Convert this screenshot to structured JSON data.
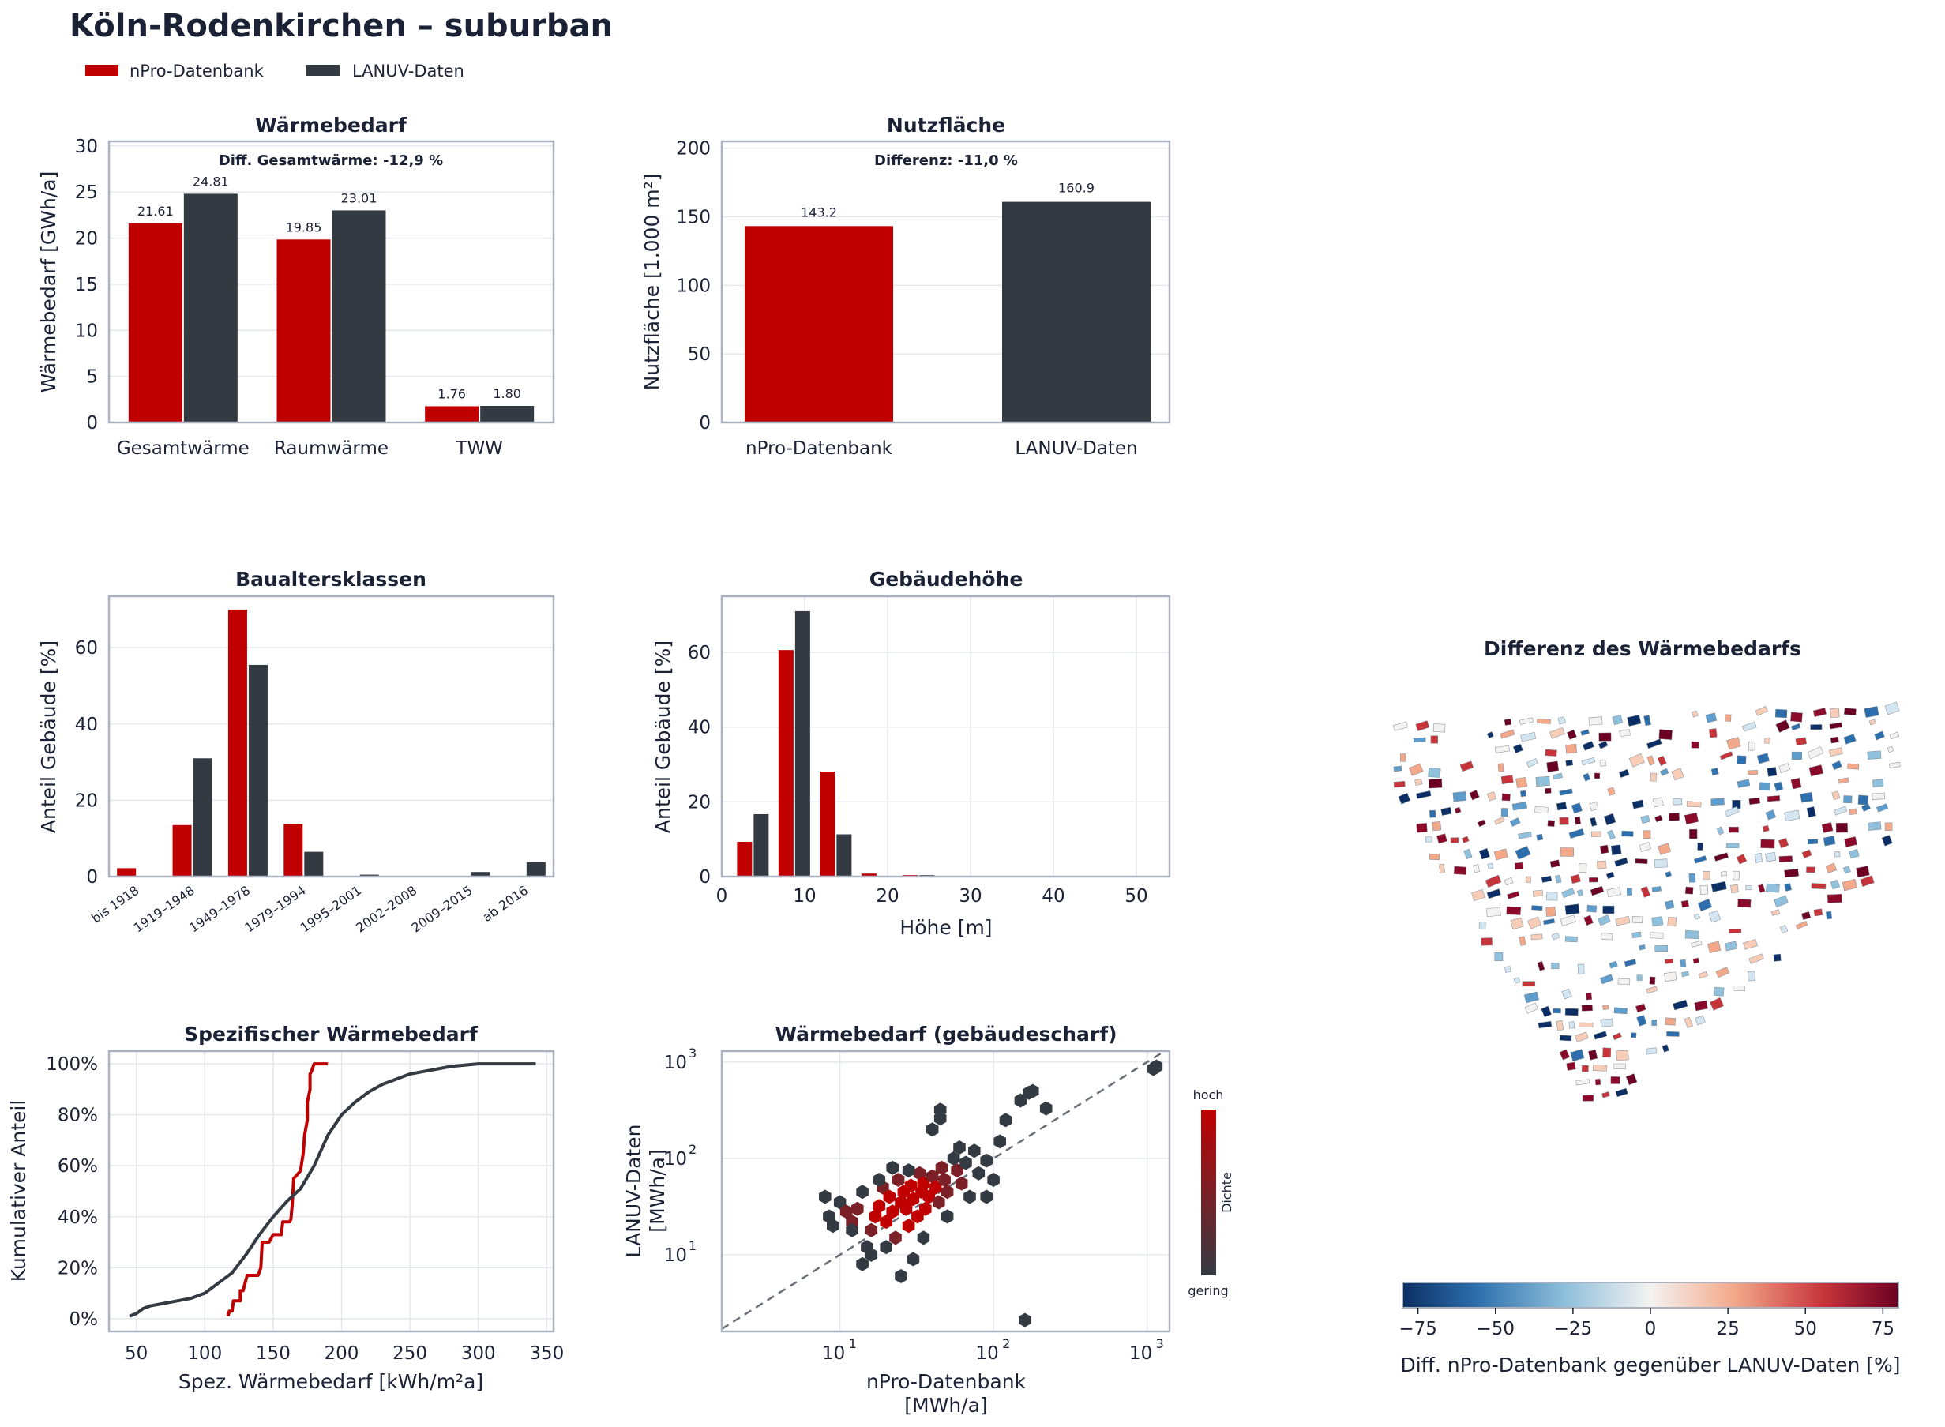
{
  "title": "Köln-Rodenkirchen – suburban",
  "legend": [
    {
      "label": "nPro-Datenbank",
      "color": "#c00000"
    },
    {
      "label": "LANUV-Daten",
      "color": "#343a42"
    }
  ],
  "colors": {
    "npro": "#c00000",
    "lanuv": "#343a42",
    "axis": "#aab2c0",
    "text": "#1b2236"
  },
  "chart_data": [
    {
      "id": "waermebedarf",
      "type": "bar",
      "title": "Wärmebedarf",
      "ylabel": "Wärmebedarf [GWh/a]",
      "annotation": "Diff. Gesamtwärme: -12,9 %",
      "categories": [
        "Gesamtwärme",
        "Raumwärme",
        "TWW"
      ],
      "ylim": [
        0,
        30.5
      ],
      "yticks": [
        0,
        5,
        10,
        15,
        20,
        25,
        30
      ],
      "grid": true,
      "series": [
        {
          "name": "nPro-Datenbank",
          "values": [
            21.61,
            19.85,
            1.76
          ],
          "labels": [
            "21.61",
            "19.85",
            "1.76"
          ]
        },
        {
          "name": "LANUV-Daten",
          "values": [
            24.81,
            23.01,
            1.8
          ],
          "labels": [
            "24.81",
            "23.01",
            "1.80"
          ]
        }
      ]
    },
    {
      "id": "nutzflaeche",
      "type": "bar",
      "title": "Nutzfläche",
      "ylabel": "Nutzfläche [1.000 m²]",
      "annotation": "Differenz: -11,0 %",
      "categories": [
        "nPro-Datenbank",
        "LANUV-Daten"
      ],
      "values": [
        143.2,
        160.9
      ],
      "labels": [
        "143.2",
        "160.9"
      ],
      "ylim": [
        0,
        205
      ],
      "yticks": [
        0,
        50,
        100,
        150,
        200
      ],
      "grid": true
    },
    {
      "id": "baualtersklassen",
      "type": "bar",
      "title": "Baualtersklassen",
      "ylabel": "Anteil Gebäude [%]",
      "categories": [
        "bis 1918",
        "1919–1948",
        "1949–1978",
        "1979–1994",
        "1995–2001",
        "2002–2008",
        "2009–2015",
        "ab 2016"
      ],
      "ylim": [
        0,
        73.5
      ],
      "yticks": [
        0,
        20,
        40,
        60
      ],
      "grid": true,
      "series": [
        {
          "name": "nPro-Datenbank",
          "values": [
            2.2,
            13.5,
            70.0,
            13.8,
            0,
            0,
            0,
            0
          ]
        },
        {
          "name": "LANUV-Daten",
          "values": [
            0,
            31.0,
            55.5,
            6.5,
            0.5,
            0.2,
            1.2,
            3.8
          ]
        }
      ]
    },
    {
      "id": "gebaeudehoehe",
      "type": "bar",
      "title": "Gebäudehöhe",
      "xlabel": "Höhe [m]",
      "ylabel": "Anteil Gebäude [%]",
      "xlim": [
        0,
        54
      ],
      "xticks": [
        0,
        10,
        20,
        30,
        40,
        50
      ],
      "ylim": [
        0,
        75
      ],
      "yticks": [
        0,
        20,
        40,
        60
      ],
      "grid": true,
      "bin_centers": [
        3.75,
        8.75,
        13.75,
        18.75,
        23.75
      ],
      "series": [
        {
          "name": "nPro-Datenbank",
          "values": [
            9.3,
            60.6,
            28.1,
            0.8,
            0.4
          ]
        },
        {
          "name": "LANUV-Daten",
          "values": [
            16.7,
            71.0,
            11.3,
            0.2,
            0.4
          ]
        }
      ]
    },
    {
      "id": "spezifisch",
      "type": "line",
      "title": "Spezifischer Wärmebedarf",
      "xlabel": "Spez. Wärmebedarf [kWh/m²a]",
      "ylabel": "Kumulativer Anteil",
      "xlim": [
        30,
        355
      ],
      "xticks": [
        50,
        100,
        150,
        200,
        250,
        300,
        350
      ],
      "ylim": [
        -0.05,
        1.05
      ],
      "yticks": [
        0,
        0.2,
        0.4,
        0.6,
        0.8,
        1.0
      ],
      "ytick_labels": [
        "0%",
        "20%",
        "40%",
        "60%",
        "80%",
        "100%"
      ],
      "grid": true,
      "series": [
        {
          "name": "nPro-Datenbank",
          "x": [
            117,
            118,
            120,
            121,
            126,
            126,
            128,
            130,
            131,
            139,
            141,
            142,
            147,
            150,
            156,
            157,
            162,
            163,
            164,
            165,
            170,
            172,
            173,
            175,
            175,
            177,
            177,
            178,
            180,
            182,
            190
          ],
          "y": [
            0.01,
            0.03,
            0.03,
            0.07,
            0.07,
            0.11,
            0.11,
            0.15,
            0.17,
            0.17,
            0.2,
            0.3,
            0.3,
            0.33,
            0.33,
            0.38,
            0.38,
            0.39,
            0.45,
            0.55,
            0.58,
            0.65,
            0.72,
            0.78,
            0.85,
            0.9,
            0.96,
            0.97,
            1.0,
            1.0,
            1.0
          ]
        },
        {
          "name": "LANUV-Daten",
          "x": [
            45,
            50,
            55,
            60,
            70,
            80,
            90,
            100,
            110,
            120,
            130,
            140,
            150,
            160,
            170,
            180,
            190,
            200,
            210,
            220,
            230,
            240,
            250,
            260,
            270,
            280,
            290,
            300,
            320,
            342
          ],
          "y": [
            0.01,
            0.02,
            0.04,
            0.05,
            0.06,
            0.07,
            0.08,
            0.1,
            0.14,
            0.18,
            0.25,
            0.33,
            0.4,
            0.46,
            0.51,
            0.6,
            0.72,
            0.8,
            0.85,
            0.89,
            0.92,
            0.94,
            0.96,
            0.97,
            0.98,
            0.99,
            0.995,
            1.0,
            1.0,
            1.0
          ]
        }
      ]
    },
    {
      "id": "gebaeudescharf",
      "type": "scatter",
      "title": "Wärmebedarf (gebäudescharf)",
      "xlabel": "nPro-Datenbank [MWh/a]",
      "ylabel": "LANUV-Daten [MWh/a]",
      "xlabel_lines": [
        "nPro-Datenbank",
        "[MWh/a]"
      ],
      "ylabel_lines": [
        "LANUV-Daten",
        "[MWh/a]"
      ],
      "xscale": "log",
      "yscale": "log",
      "xlim": [
        1.7,
        1400
      ],
      "ylim": [
        1.6,
        1300
      ],
      "ticks": [
        10,
        100,
        1000
      ],
      "tick_labels": [
        "10",
        "10",
        "10"
      ],
      "tick_exponents": [
        "1",
        "2",
        "3"
      ],
      "diagonal": true,
      "colorbar": {
        "top_label": "hoch",
        "bottom_label": "gering",
        "label": "Dichte"
      },
      "points": [
        [
          8,
          40,
          0
        ],
        [
          8.5,
          25,
          0
        ],
        [
          9,
          20,
          0
        ],
        [
          10,
          35,
          0
        ],
        [
          11,
          28,
          1
        ],
        [
          12,
          22,
          1
        ],
        [
          13,
          30,
          1
        ],
        [
          14,
          45,
          0
        ],
        [
          15,
          12,
          0
        ],
        [
          16,
          18,
          1
        ],
        [
          17,
          25,
          2
        ],
        [
          18,
          32,
          2
        ],
        [
          19,
          50,
          1
        ],
        [
          20,
          22,
          2
        ],
        [
          21,
          40,
          2
        ],
        [
          22,
          28,
          2
        ],
        [
          23,
          15,
          1
        ],
        [
          24,
          60,
          1
        ],
        [
          25,
          35,
          2
        ],
        [
          26,
          45,
          2
        ],
        [
          27,
          30,
          2
        ],
        [
          28,
          20,
          2
        ],
        [
          29,
          52,
          2
        ],
        [
          30,
          38,
          2
        ],
        [
          32,
          25,
          2
        ],
        [
          33,
          70,
          1
        ],
        [
          34,
          45,
          2
        ],
        [
          35,
          55,
          2
        ],
        [
          36,
          30,
          2
        ],
        [
          38,
          40,
          2
        ],
        [
          40,
          65,
          1
        ],
        [
          42,
          50,
          2
        ],
        [
          44,
          35,
          1
        ],
        [
          46,
          80,
          1
        ],
        [
          48,
          60,
          1
        ],
        [
          50,
          45,
          1
        ],
        [
          55,
          100,
          0
        ],
        [
          58,
          75,
          1
        ],
        [
          62,
          55,
          1
        ],
        [
          66,
          90,
          0
        ],
        [
          70,
          40,
          0
        ],
        [
          75,
          120,
          0
        ],
        [
          80,
          70,
          0
        ],
        [
          90,
          95,
          0
        ],
        [
          100,
          60,
          0
        ],
        [
          110,
          150,
          0
        ],
        [
          120,
          250,
          0
        ],
        [
          150,
          400,
          0
        ],
        [
          170,
          480,
          0
        ],
        [
          180,
          500,
          0
        ],
        [
          220,
          330,
          0
        ],
        [
          40,
          200,
          0
        ],
        [
          45,
          260,
          0
        ],
        [
          45,
          320,
          0
        ],
        [
          14,
          8,
          0
        ],
        [
          16,
          10,
          0
        ],
        [
          25,
          6,
          0
        ],
        [
          30,
          9,
          0
        ],
        [
          12,
          18,
          0
        ],
        [
          20,
          12,
          0
        ],
        [
          160,
          2.1,
          0
        ],
        [
          1100,
          850,
          0
        ],
        [
          1150,
          900,
          0
        ],
        [
          60,
          130,
          0
        ],
        [
          35,
          15,
          0
        ],
        [
          18,
          60,
          0
        ],
        [
          22,
          80,
          0
        ],
        [
          28,
          75,
          0
        ],
        [
          50,
          25,
          0
        ],
        [
          90,
          40,
          0
        ]
      ]
    },
    {
      "id": "differenz",
      "type": "heatmap",
      "title": "Differenz des Wärmebedarfs",
      "colorbar": {
        "label": "Diff. nPro-Datenbank gegenüber LANUV-Daten [%]",
        "range": [
          -80,
          80
        ],
        "ticks": [
          -75,
          -50,
          -25,
          0,
          25,
          50,
          75
        ],
        "tick_labels": [
          "−75",
          "−50",
          "−25",
          "0",
          "25",
          "50",
          "75"
        ]
      }
    }
  ]
}
